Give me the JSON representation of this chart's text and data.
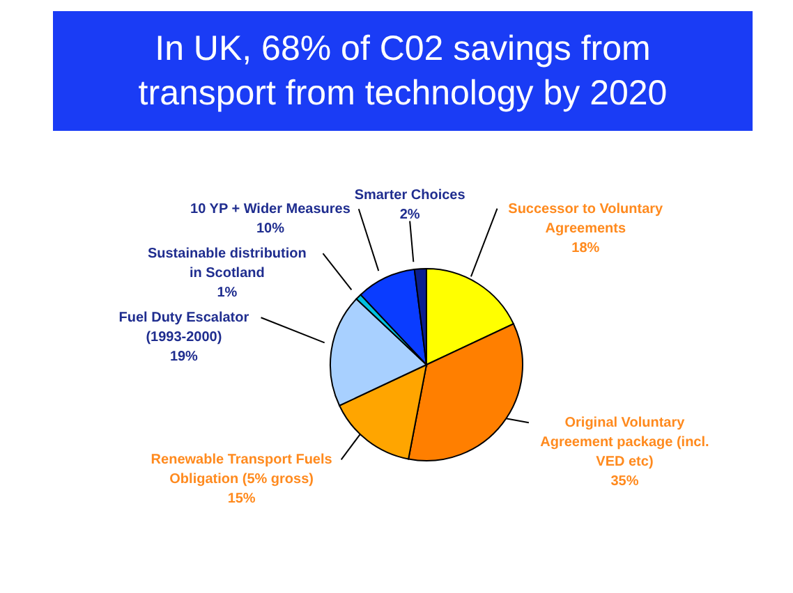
{
  "chart_data": {
    "type": "pie",
    "title": "In UK, 68% of C02 savings from transport from technology by 2020",
    "categories": [
      "Successor to Voluntary Agreements",
      "Original Voluntary Agreement package (incl. VED etc)",
      "Renewable Transport Fuels Obligation (5% gross)",
      "Fuel Duty Escalator (1993-2000)",
      "Sustainable distribution in Scotland",
      "10 YP + Wider Measures",
      "Smarter Choices"
    ],
    "values": [
      18,
      35,
      15,
      19,
      1,
      10,
      2
    ],
    "value_labels": [
      "18%",
      "35%",
      "15%",
      "19%",
      "1%",
      "10%",
      "2%"
    ],
    "colors": [
      "#ffff00",
      "#ff7f00",
      "#ffa500",
      "#a8d0ff",
      "#00c0e0",
      "#0a3cff",
      "#0a1f8f"
    ]
  }
}
